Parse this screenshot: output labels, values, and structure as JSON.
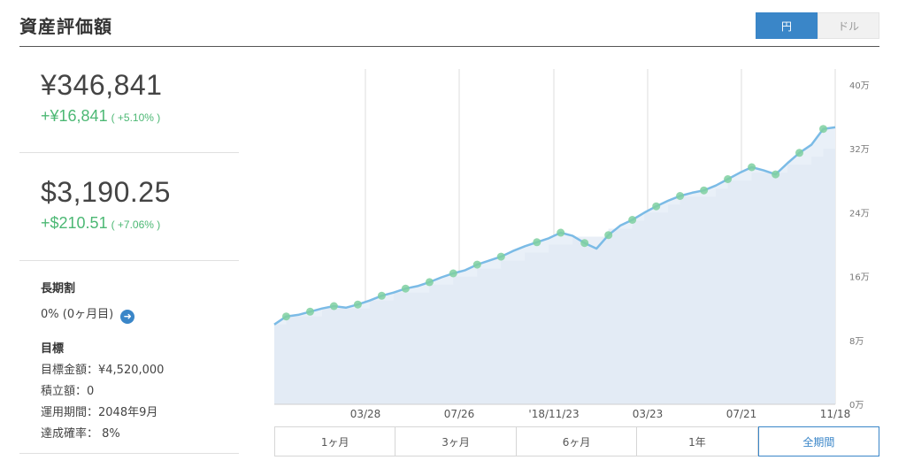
{
  "header": {
    "title": "資産評価額"
  },
  "currency_toggle": {
    "options": [
      {
        "label": "円",
        "active": true
      },
      {
        "label": "ドル",
        "active": false
      }
    ]
  },
  "summary": {
    "jpy": {
      "value": "¥346,841",
      "change": "+¥16,841",
      "change_pct": "( +5.10% )"
    },
    "usd": {
      "value": "$3,190.25",
      "change": "+$210.51",
      "change_pct": "( +7.06% )"
    }
  },
  "long_term": {
    "label": "長期割",
    "value": "0% (0ヶ月目)"
  },
  "goal": {
    "label": "目標",
    "amount": "目標金額：¥4,520,000",
    "contribution": "積立額：0",
    "period": "運用期間：2048年9月",
    "probability": "達成確率： 8%"
  },
  "range_tabs": [
    {
      "label": "1ヶ月",
      "active": false
    },
    {
      "label": "3ヶ月",
      "active": false
    },
    {
      "label": "6ヶ月",
      "active": false
    },
    {
      "label": "1年",
      "active": false
    },
    {
      "label": "全期間",
      "active": true
    }
  ],
  "colors": {
    "accent": "#3a86c8",
    "positive": "#4cb874",
    "line": "#7bbbe6",
    "area": "#e9f0f8",
    "deposit": "#dfe8f3",
    "marker": "#7fd0a0"
  },
  "chart_data": {
    "type": "area",
    "y_unit": "万",
    "y_ticks": [
      "0万",
      "8万",
      "16万",
      "24万",
      "32万",
      "40万"
    ],
    "ylim": [
      0,
      42
    ],
    "x_ticks": [
      "03/28",
      "07/26",
      "'18/11/23",
      "03/23",
      "07/21",
      "11/18"
    ],
    "grid": true,
    "series": [
      {
        "values": [
          10,
          11,
          11.2,
          11.6,
          12,
          12.3,
          12.1,
          12.5,
          13,
          13.6,
          14,
          14.5,
          14.8,
          15.3,
          15.9,
          16.4,
          16.8,
          17.5,
          18,
          18.5,
          19.2,
          19.8,
          20.3,
          20.8,
          21.5,
          21.1,
          20.2,
          19.5,
          21.2,
          22.4,
          23.1,
          24,
          24.8,
          25.5,
          26.1,
          26.5,
          26.8,
          27.4,
          28.2,
          29,
          29.7,
          29.3,
          28.8,
          30.2,
          31.5,
          32.5,
          34.5,
          34.7
        ]
      }
    ],
    "deposit_steps": [
      10,
      11,
      11,
      11,
      12,
      12,
      12,
      12,
      13,
      13,
      14,
      14,
      14,
      15,
      15,
      16,
      16,
      17,
      17,
      18,
      18,
      19,
      19,
      20,
      20,
      21,
      21,
      21,
      22,
      22,
      23,
      24,
      24,
      25,
      26,
      26,
      26,
      27,
      28,
      28,
      29,
      29,
      29,
      30,
      30,
      31,
      32,
      32
    ],
    "markers": [
      1,
      3,
      5,
      7,
      9,
      11,
      13,
      15,
      17,
      19,
      22,
      24,
      26,
      28,
      30,
      32,
      34,
      36,
      38,
      40,
      42,
      44,
      46
    ]
  }
}
